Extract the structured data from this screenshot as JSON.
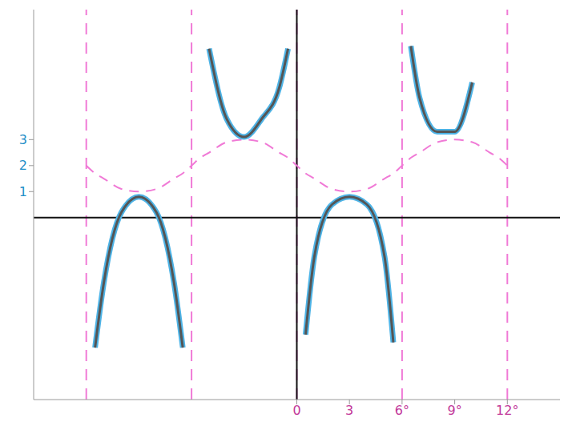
{
  "chart_data": {
    "type": "line",
    "xlim": [
      -15,
      15
    ],
    "ylim": [
      -7,
      8
    ],
    "xticks": [
      0,
      3,
      {
        "value": 6,
        "label": "6°"
      },
      {
        "value": 9,
        "label": "9°"
      },
      {
        "value": 12,
        "label": "12°"
      }
    ],
    "yticks": [
      1,
      2,
      3
    ],
    "grid": false,
    "asymptotes": [
      -12,
      -6,
      0,
      6,
      12
    ],
    "x": [
      -12,
      -11.5,
      -11,
      -10,
      -9,
      -8,
      -7,
      -6.5,
      -6,
      -5.5,
      -5,
      -4,
      -3,
      -2,
      -1,
      -0.5,
      0,
      0.5,
      1,
      2,
      3,
      4,
      5,
      5.5,
      6,
      6.5,
      7,
      8,
      9,
      10,
      11,
      11.5,
      12
    ],
    "series": [
      {
        "color": "#555555",
        "line_style": "solid",
        "values": [
          null,
          -5,
          -2.5,
          0.2,
          0.8,
          0.2,
          -2.5,
          -5,
          null,
          null,
          6.5,
          3.8,
          3.1,
          3.8,
          5.0,
          6.5,
          null,
          -4.5,
          -1.5,
          0.5,
          0.8,
          0.5,
          -1.5,
          -4.8,
          null,
          6.6,
          4.6,
          3.3,
          3.3,
          5.2,
          null,
          null,
          null
        ]
      },
      {
        "color": "#f07ad6",
        "line_style": "dashed",
        "values": [
          2,
          1.7,
          1.5,
          1.1,
          1,
          1.1,
          1.5,
          1.7,
          2,
          2.3,
          2.5,
          2.9,
          3,
          2.9,
          2.5,
          2.3,
          2,
          1.7,
          1.5,
          1.1,
          1,
          1.1,
          1.5,
          1.7,
          2,
          2.3,
          2.5,
          2.9,
          3,
          2.9,
          2.5,
          2.3,
          2
        ]
      }
    ]
  }
}
